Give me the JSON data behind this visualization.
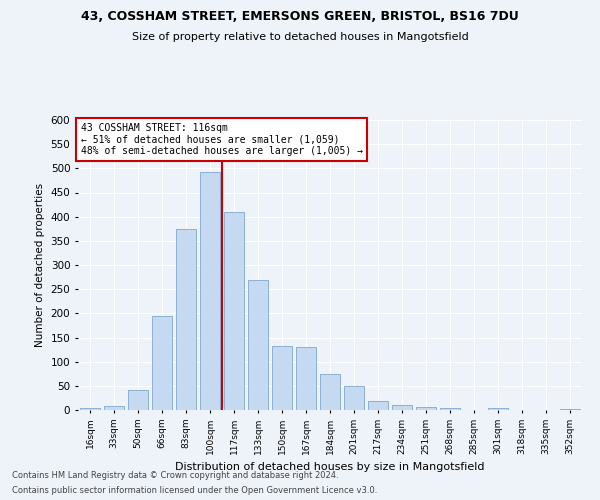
{
  "title_line1": "43, COSSHAM STREET, EMERSONS GREEN, BRISTOL, BS16 7DU",
  "title_line2": "Size of property relative to detached houses in Mangotsfield",
  "xlabel": "Distribution of detached houses by size in Mangotsfield",
  "ylabel": "Number of detached properties",
  "categories": [
    "16sqm",
    "33sqm",
    "50sqm",
    "66sqm",
    "83sqm",
    "100sqm",
    "117sqm",
    "133sqm",
    "150sqm",
    "167sqm",
    "184sqm",
    "201sqm",
    "217sqm",
    "234sqm",
    "251sqm",
    "268sqm",
    "285sqm",
    "301sqm",
    "318sqm",
    "335sqm",
    "352sqm"
  ],
  "values": [
    4,
    8,
    42,
    195,
    375,
    493,
    410,
    270,
    133,
    130,
    75,
    50,
    18,
    11,
    6,
    4,
    0,
    5,
    0,
    0,
    3
  ],
  "bar_color": "#c5d9f0",
  "bar_edge_color": "#7fa8d0",
  "annotation_text_line1": "43 COSSHAM STREET: 116sqm",
  "annotation_text_line2": "← 51% of detached houses are smaller (1,059)",
  "annotation_text_line3": "48% of semi-detached houses are larger (1,005) →",
  "annotation_box_color": "#ffffff",
  "annotation_box_edge_color": "#cc0000",
  "vline_color": "#cc0000",
  "vline_bin_index": 6,
  "ylim": [
    0,
    600
  ],
  "yticks": [
    0,
    50,
    100,
    150,
    200,
    250,
    300,
    350,
    400,
    450,
    500,
    550,
    600
  ],
  "footer_line1": "Contains HM Land Registry data © Crown copyright and database right 2024.",
  "footer_line2": "Contains public sector information licensed under the Open Government Licence v3.0.",
  "background_color": "#eef2f9",
  "grid_color": "#ffffff"
}
